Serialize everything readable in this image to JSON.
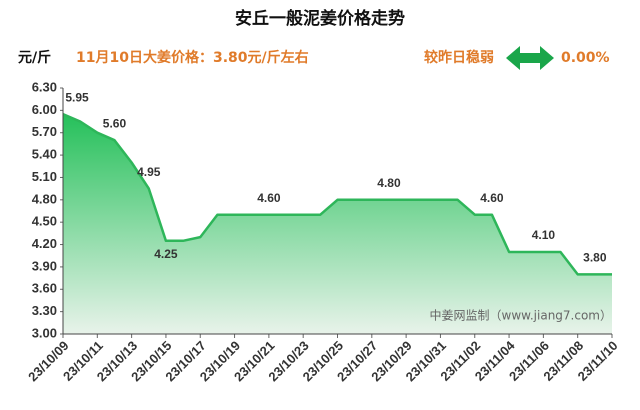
{
  "chart_data": {
    "type": "area_line",
    "title": "安丘一般泥姜价格走势",
    "unit_label": "元/斤",
    "subtitle": "11月10日大姜价格：3.80元/斤左右",
    "change_label": "较昨日稳弱",
    "change_value": "0.00%",
    "watermark": "中姜网监制（www.jiang7.com）",
    "color": "#2eb65a",
    "categories": [
      "23/10/09",
      null,
      "23/10/11",
      null,
      "23/10/13",
      null,
      "23/10/15",
      null,
      "23/10/17",
      null,
      "23/10/19",
      null,
      "23/10/21",
      null,
      "23/10/23",
      null,
      "23/10/25",
      null,
      "23/10/27",
      null,
      "23/10/29",
      null,
      "23/10/31",
      null,
      "23/11/02",
      null,
      "23/11/04",
      null,
      "23/11/06",
      null,
      "23/11/08",
      null,
      "23/11/10"
    ],
    "values": [
      5.95,
      5.85,
      5.7,
      5.6,
      5.3,
      4.95,
      4.25,
      4.25,
      4.3,
      4.6,
      4.6,
      4.6,
      4.6,
      4.6,
      4.6,
      4.6,
      4.8,
      4.8,
      4.8,
      4.8,
      4.8,
      4.8,
      4.8,
      4.8,
      4.6,
      4.6,
      4.1,
      4.1,
      4.1,
      4.1,
      3.8,
      3.8,
      3.8
    ],
    "value_labels": [
      "5.95",
      null,
      null,
      "5.60",
      null,
      "4.95",
      "4.25",
      null,
      null,
      null,
      null,
      null,
      "4.60",
      null,
      null,
      null,
      null,
      null,
      null,
      "4.80",
      null,
      null,
      null,
      null,
      null,
      "4.60",
      null,
      null,
      "4.10",
      null,
      null,
      "3.80",
      null
    ],
    "ylim": [
      3.0,
      6.3
    ],
    "yticks": [
      {
        "value": 3.0,
        "label": "3.00"
      },
      {
        "value": 3.3,
        "label": "3.30"
      },
      {
        "value": 3.6,
        "label": "3.60"
      },
      {
        "value": 3.9,
        "label": "3.90"
      },
      {
        "value": 4.2,
        "label": "4.20"
      },
      {
        "value": 4.5,
        "label": "4.50"
      },
      {
        "value": 4.8,
        "label": "4.80"
      },
      {
        "value": 5.1,
        "label": "5.10"
      },
      {
        "value": 5.4,
        "label": "5.40"
      },
      {
        "value": 5.7,
        "label": "5.70"
      },
      {
        "value": 6.0,
        "label": "6.00"
      },
      {
        "value": 6.3,
        "label": "6.30"
      }
    ],
    "grid": false
  }
}
